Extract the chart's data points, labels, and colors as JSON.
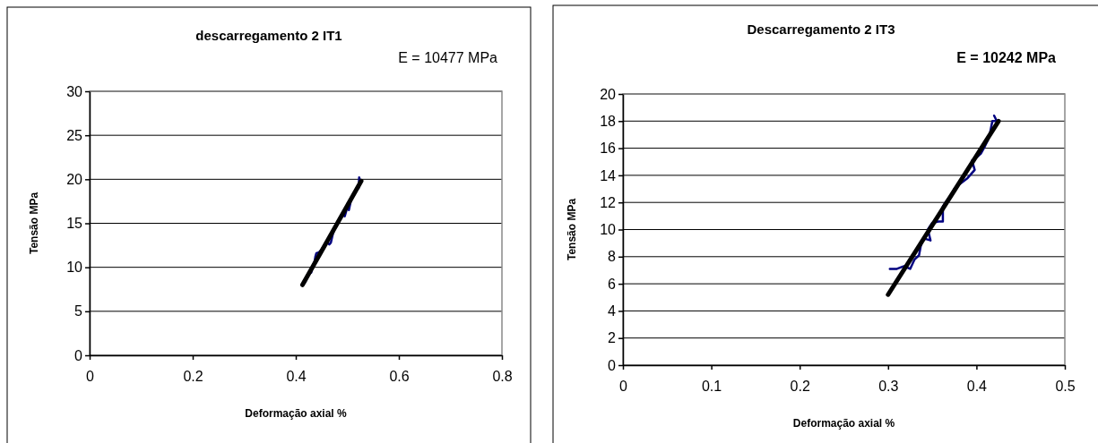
{
  "chart_data": [
    {
      "type": "line",
      "title": "descarregamento 2 IT1",
      "xlabel": "Deformação axial %",
      "ylabel": "Tensão MPa",
      "annotations": [
        "E = 10477 MPa"
      ],
      "xlim": [
        0,
        0.8
      ],
      "xticks": [
        0,
        0.2,
        0.4,
        0.6,
        0.8
      ],
      "ylim": [
        0,
        30
      ],
      "yticks": [
        0,
        5,
        10,
        15,
        20,
        25,
        30
      ],
      "grid": "y",
      "marker": "none",
      "series": [
        {
          "color": "#000080",
          "x": [
            0.418,
            0.422,
            0.425,
            0.43,
            0.433,
            0.436,
            0.438,
            0.44,
            0.445,
            0.45,
            0.455,
            0.46,
            0.465,
            0.468,
            0.472,
            0.478,
            0.485,
            0.49,
            0.495,
            0.498,
            0.5,
            0.503,
            0.507,
            0.512,
            0.518,
            0.522,
            0.523,
            0.525
          ],
          "values": [
            8.3,
            8.8,
            9.2,
            9.4,
            10.2,
            10.5,
            11.2,
            11.6,
            11.7,
            12.0,
            12.5,
            12.9,
            12.6,
            12.8,
            13.8,
            14.8,
            15.6,
            16.0,
            15.8,
            16.4,
            17.2,
            16.5,
            17.6,
            18.4,
            18.8,
            19.0,
            20.2,
            19.8
          ]
        },
        {
          "color": "#000000",
          "x": [
            0.413,
            0.527
          ],
          "values": [
            8.0,
            19.8
          ]
        }
      ]
    },
    {
      "type": "line",
      "title": "Descarregamento 2 IT3",
      "xlabel": "Deformação axial %",
      "ylabel": "Tensão MPa",
      "annotations": [
        "E = 10242 MPa"
      ],
      "xlim": [
        0,
        0.5
      ],
      "xticks": [
        0,
        0.1,
        0.2,
        0.3,
        0.4,
        0.5
      ],
      "ylim": [
        0,
        20
      ],
      "yticks": [
        0,
        2,
        4,
        6,
        8,
        10,
        12,
        14,
        16,
        18,
        20
      ],
      "grid": "y",
      "marker": "none",
      "series": [
        {
          "color": "#000080",
          "x": [
            0.302,
            0.31,
            0.318,
            0.325,
            0.33,
            0.335,
            0.337,
            0.34,
            0.343,
            0.348,
            0.345,
            0.35,
            0.357,
            0.362,
            0.362,
            0.366,
            0.37,
            0.375,
            0.38,
            0.39,
            0.398,
            0.395,
            0.4,
            0.405,
            0.41,
            0.413,
            0.415,
            0.418,
            0.423,
            0.42
          ],
          "values": [
            7.1,
            7.1,
            7.3,
            7.1,
            7.8,
            8.1,
            8.8,
            9.3,
            9.3,
            9.2,
            10.0,
            10.5,
            10.6,
            10.6,
            11.7,
            12.1,
            12.4,
            13.0,
            13.3,
            13.8,
            14.4,
            15.1,
            15.3,
            15.6,
            16.2,
            16.6,
            17.0,
            18.0,
            18.0,
            18.4
          ]
        },
        {
          "color": "#000000",
          "x": [
            0.3,
            0.425
          ],
          "values": [
            5.2,
            18.0
          ]
        }
      ]
    }
  ]
}
